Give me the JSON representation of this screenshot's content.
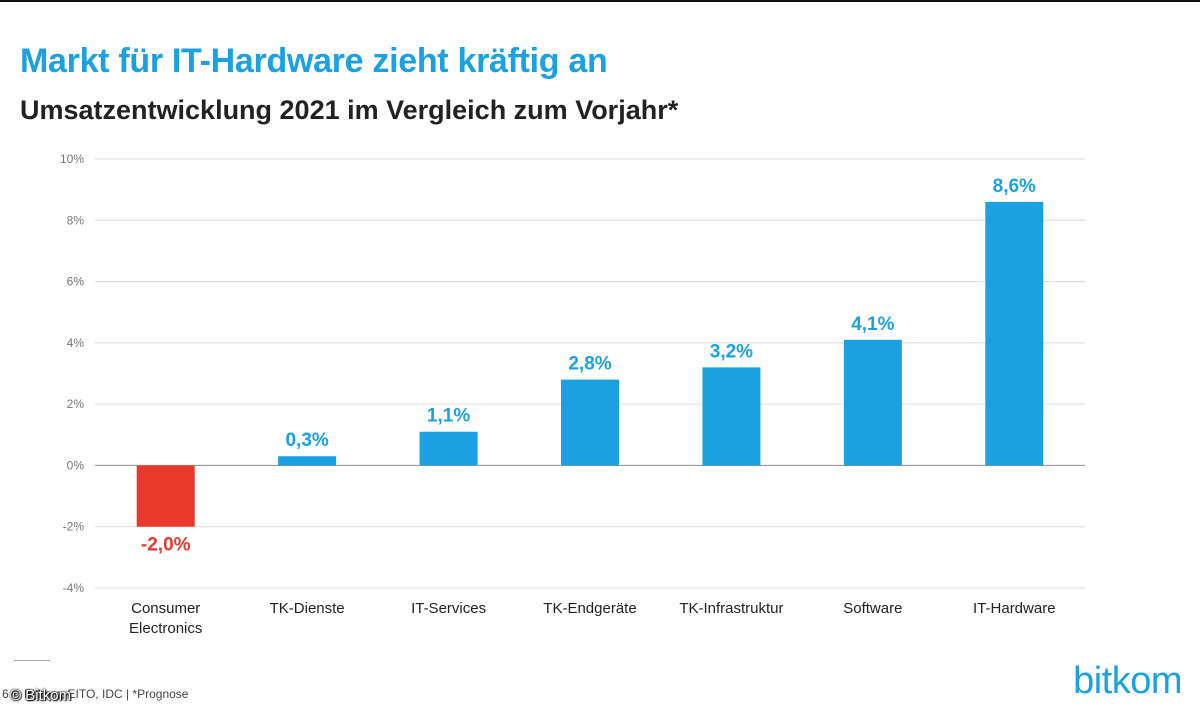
{
  "header": {
    "title": "Markt für IT-Hardware zieht kräftig an",
    "subtitle": "Umsatzentwicklung 2021 im Vergleich zum Vorjahr*"
  },
  "footer": {
    "source": "6 © Bitkom, EITO, IDC | *Prognose",
    "copyright": "© Bitkom",
    "logo": "bitkom"
  },
  "colors": {
    "positive": "#1ba1e2",
    "negative": "#e8392c",
    "title": "#1ba1e2"
  },
  "chart_data": {
    "type": "bar",
    "title": "Markt für IT-Hardware zieht kräftig an",
    "subtitle": "Umsatzentwicklung 2021 im Vergleich zum Vorjahr*",
    "categories": [
      "Consumer\nElectronics",
      "TK-Dienste",
      "IT-Services",
      "TK-Endgeräte",
      "TK-Infrastruktur",
      "Software",
      "IT-Hardware"
    ],
    "values": [
      -2.0,
      0.3,
      1.1,
      2.8,
      3.2,
      4.1,
      8.6
    ],
    "value_labels": [
      "-2,0%",
      "0,3%",
      "1,1%",
      "2,8%",
      "3,2%",
      "4,1%",
      "8,6%"
    ],
    "ylim": [
      -4,
      10
    ],
    "yticks": [
      10,
      8,
      6,
      4,
      2,
      0,
      -2,
      -4
    ],
    "ytick_labels": [
      "10%",
      "8%",
      "6%",
      "4%",
      "2%",
      "0%",
      "-2%",
      "-4%"
    ],
    "xlabel": "",
    "ylabel": "",
    "grid": true,
    "legend": "none"
  }
}
